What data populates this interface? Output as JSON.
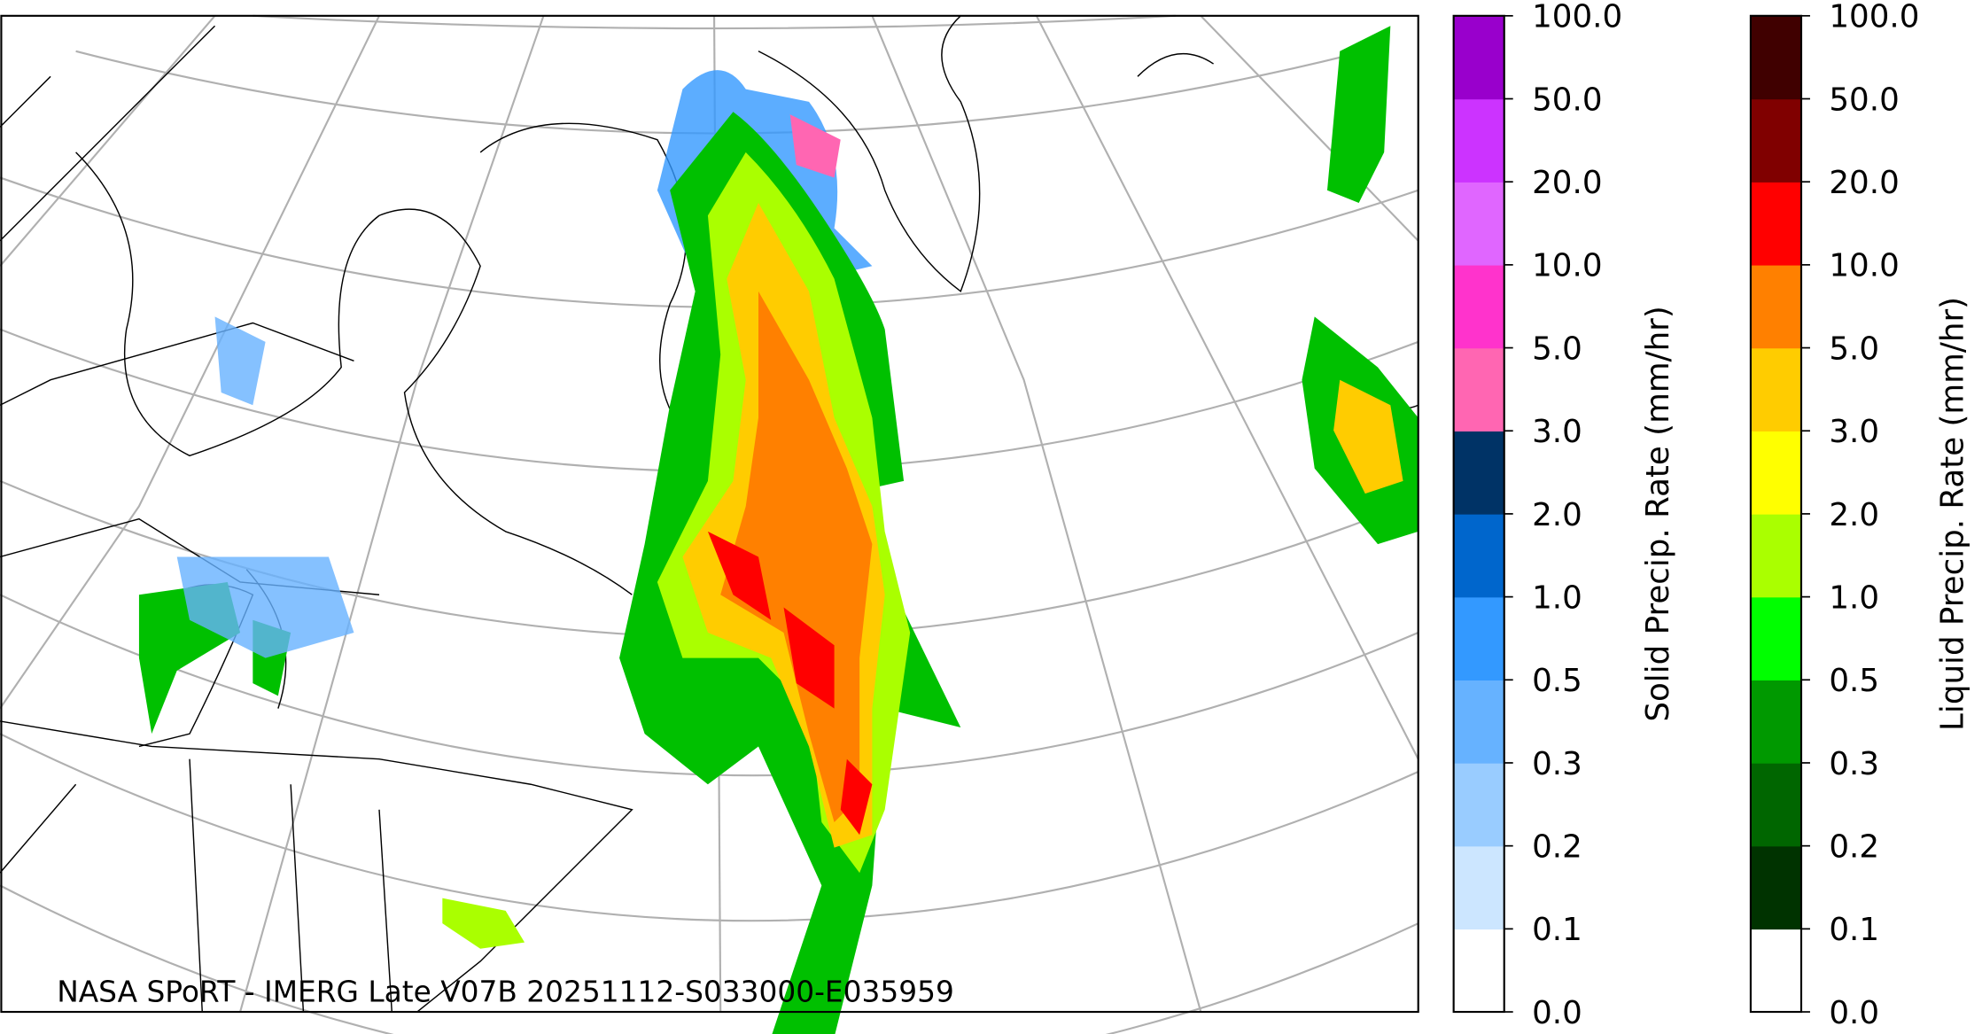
{
  "map": {
    "footer": "NASA SPoRT - IMERG Late V07B 20251112-S033000-E035959"
  },
  "colorbars": [
    {
      "label": "Solid Precip. Rate (mm/hr)",
      "ticks": [
        {
          "value": 0,
          "label": "0.0"
        },
        {
          "value": 0.1,
          "label": "0.1"
        },
        {
          "value": 0.2,
          "label": "0.2"
        },
        {
          "value": 0.3,
          "label": "0.3"
        },
        {
          "value": 0.5,
          "label": "0.5"
        },
        {
          "value": 1,
          "label": "1.0"
        },
        {
          "value": 2,
          "label": "2.0"
        },
        {
          "value": 3,
          "label": "3.0"
        },
        {
          "value": 5,
          "label": "5.0"
        },
        {
          "value": 10,
          "label": "10.0"
        },
        {
          "value": 20,
          "label": "20.0"
        },
        {
          "value": 50,
          "label": "50.0"
        },
        {
          "value": 100,
          "label": "100.0"
        }
      ],
      "colors": [
        "#ffffff",
        "#cce6ff",
        "#99ccff",
        "#66b2ff",
        "#3399ff",
        "#0066cc",
        "#003366",
        "#ff66b2",
        "#ff33cc",
        "#e066ff",
        "#cc33ff",
        "#9900cc"
      ]
    },
    {
      "label": "Liquid Precip. Rate (mm/hr)",
      "ticks": [
        {
          "value": 0,
          "label": "0.0"
        },
        {
          "value": 0.1,
          "label": "0.1"
        },
        {
          "value": 0.2,
          "label": "0.2"
        },
        {
          "value": 0.3,
          "label": "0.3"
        },
        {
          "value": 0.5,
          "label": "0.5"
        },
        {
          "value": 1,
          "label": "1.0"
        },
        {
          "value": 2,
          "label": "2.0"
        },
        {
          "value": 3,
          "label": "3.0"
        },
        {
          "value": 5,
          "label": "5.0"
        },
        {
          "value": 10,
          "label": "10.0"
        },
        {
          "value": 20,
          "label": "20.0"
        },
        {
          "value": 50,
          "label": "50.0"
        },
        {
          "value": 100,
          "label": "100.0"
        }
      ],
      "colors": [
        "#ffffff",
        "#003300",
        "#006600",
        "#009900",
        "#00ff00",
        "#aaff00",
        "#ffff00",
        "#ffcc00",
        "#ff8000",
        "#ff0000",
        "#800000",
        "#400000"
      ]
    }
  ]
}
